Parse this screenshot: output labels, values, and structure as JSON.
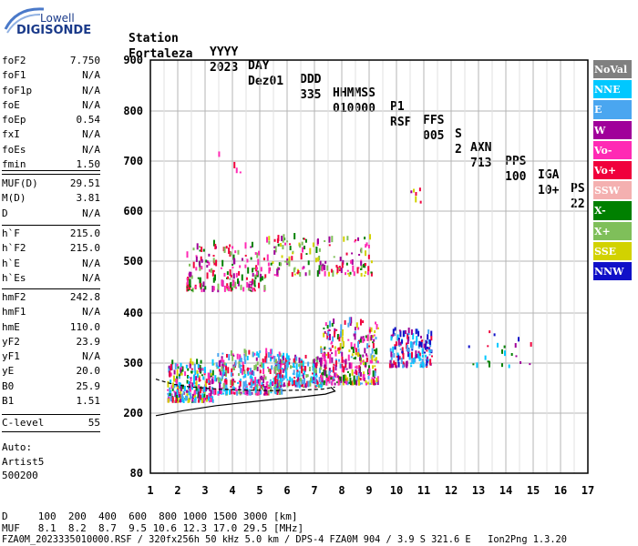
{
  "logo": {
    "brand": "Lowell",
    "product": "DIGISONDE"
  },
  "header": {
    "labels": [
      "Station",
      "YYYY",
      "DAY",
      "DDD",
      "HHMMSS",
      "P1",
      "FFS",
      "S",
      "AXN",
      "PPS",
      "IGA",
      "PS"
    ],
    "values": [
      "Fortaleza",
      "2023",
      "Dez01",
      "335",
      "010000",
      "RSF",
      "005",
      "2",
      "713",
      "100",
      "10+",
      "22"
    ]
  },
  "params": {
    "group1": [
      {
        "name": "foF2",
        "value": "7.750"
      },
      {
        "name": "foF1",
        "value": "N/A"
      },
      {
        "name": "foF1p",
        "value": "N/A"
      },
      {
        "name": "foE",
        "value": "N/A"
      },
      {
        "name": "foEp",
        "value": "0.54"
      },
      {
        "name": "fxI",
        "value": "N/A"
      },
      {
        "name": "foEs",
        "value": "N/A"
      },
      {
        "name": "fmin",
        "value": "1.50"
      }
    ],
    "group2": [
      {
        "name": "MUF(D)",
        "value": "29.51"
      },
      {
        "name": "M(D)",
        "value": "3.81"
      },
      {
        "name": "D",
        "value": "N/A"
      }
    ],
    "group3": [
      {
        "name": "h`F",
        "value": "215.0"
      },
      {
        "name": "h`F2",
        "value": "215.0"
      },
      {
        "name": "h`E",
        "value": "N/A"
      },
      {
        "name": "h`Es",
        "value": "N/A"
      }
    ],
    "group4": [
      {
        "name": "hmF2",
        "value": "242.8"
      },
      {
        "name": "hmF1",
        "value": "N/A"
      },
      {
        "name": "hmE",
        "value": "110.0"
      },
      {
        "name": "yF2",
        "value": "23.9"
      },
      {
        "name": "yF1",
        "value": "N/A"
      },
      {
        "name": "yE",
        "value": "20.0"
      },
      {
        "name": "B0",
        "value": "25.9"
      },
      {
        "name": "B1",
        "value": "1.51"
      }
    ],
    "group5": [
      {
        "name": "C-level",
        "value": "55"
      }
    ]
  },
  "auto": {
    "label": "Auto:",
    "program": "Artist5",
    "version": "500200"
  },
  "footer": {
    "d_row": "D     100  200  400  600  800 1000 1500 3000 [km]",
    "muf_row": "MUF   8.1  8.2  8.7  9.5 10.6 12.3 17.0 29.5 [MHz]",
    "file_row": "FZA0M_2023335010000.RSF / 320fx256h 50 kHz 5.0 km / DPS-4 FZA0M 904 / 3.9 S 321.6 E   Ion2Png 1.3.20"
  },
  "legend": [
    {
      "label": "NoVal",
      "color": "#808080"
    },
    {
      "label": "NNE",
      "color": "#00c8ff"
    },
    {
      "label": "E",
      "color": "#4aa6f0"
    },
    {
      "label": "W",
      "color": "#a0009a"
    },
    {
      "label": "Vo-",
      "color": "#ff2ab4"
    },
    {
      "label": "Vo+",
      "color": "#f0003c"
    },
    {
      "label": "SSW",
      "color": "#f4b0b0"
    },
    {
      "label": "X-",
      "color": "#008000"
    },
    {
      "label": "X+",
      "color": "#7fbf5a"
    },
    {
      "label": "SSE",
      "color": "#d2d200"
    },
    {
      "label": "NNW",
      "color": "#1010c8"
    }
  ],
  "chart_data": {
    "type": "scatter",
    "xlabel": "",
    "ylabel": "",
    "xlim": [
      1,
      17
    ],
    "ylim": [
      80,
      900
    ],
    "x_ticks": [
      1,
      2,
      3,
      4,
      5,
      6,
      7,
      8,
      9,
      10,
      11,
      12,
      13,
      14,
      15,
      16,
      17
    ],
    "y_ticks": [
      80,
      200,
      300,
      400,
      500,
      600,
      700,
      800,
      900
    ],
    "grid": true,
    "legend_position": "right",
    "clusters": [
      {
        "x": [
          1.6,
          3.3
        ],
        "y": [
          220,
          300
        ],
        "n": 260,
        "colors": [
          "#a0009a",
          "#f0003c",
          "#4aa6f0",
          "#ff2ab4",
          "#00c8ff",
          "#008000",
          "#d2d200"
        ]
      },
      {
        "x": [
          3.3,
          5.8
        ],
        "y": [
          235,
          320
        ],
        "n": 320,
        "colors": [
          "#4aa6f0",
          "#00c8ff",
          "#a0009a",
          "#f0003c",
          "#ff2ab4",
          "#7fbf5a"
        ]
      },
      {
        "x": [
          5.5,
          7.3
        ],
        "y": [
          250,
          310
        ],
        "n": 200,
        "colors": [
          "#4aa6f0",
          "#f0003c",
          "#00c8ff",
          "#a0009a",
          "#7fbf5a"
        ]
      },
      {
        "x": [
          7.2,
          9.3
        ],
        "y": [
          255,
          380
        ],
        "n": 300,
        "colors": [
          "#f0003c",
          "#ff2ab4",
          "#4aa6f0",
          "#008000",
          "#d2d200",
          "#a0009a"
        ]
      },
      {
        "x": [
          9.7,
          11.3
        ],
        "y": [
          290,
          365
        ],
        "n": 150,
        "colors": [
          "#1010c8",
          "#4aa6f0",
          "#00c8ff",
          "#f0003c",
          "#a0009a"
        ]
      },
      {
        "x": [
          12.3,
          15.0
        ],
        "y": [
          290,
          360
        ],
        "n": 22,
        "colors": [
          "#1010c8",
          "#00c8ff",
          "#008000",
          "#f0003c",
          "#a0009a"
        ]
      },
      {
        "x": [
          2.3,
          5.2
        ],
        "y": [
          440,
          530
        ],
        "n": 180,
        "colors": [
          "#f0003c",
          "#ff2ab4",
          "#a0009a",
          "#008000",
          "#7fbf5a"
        ]
      },
      {
        "x": [
          5.2,
          9.1
        ],
        "y": [
          470,
          545
        ],
        "n": 150,
        "colors": [
          "#f0003c",
          "#ff2ab4",
          "#a0009a",
          "#008000",
          "#7fbf5a",
          "#d2d200"
        ]
      },
      {
        "x": [
          10.5,
          10.9
        ],
        "y": [
          615,
          640
        ],
        "n": 6,
        "colors": [
          "#1010c8",
          "#d2d200",
          "#a0009a",
          "#f0003c"
        ]
      },
      {
        "x": [
          3.0,
          4.6
        ],
        "y": [
          675,
          735
        ],
        "n": 4,
        "colors": [
          "#f0003c",
          "#ff2ab4"
        ]
      }
    ],
    "profile_solid": [
      [
        1.2,
        195
      ],
      [
        2.2,
        205
      ],
      [
        3.4,
        215
      ],
      [
        4.6,
        222
      ],
      [
        5.6,
        228
      ],
      [
        6.6,
        233
      ],
      [
        7.4,
        238
      ],
      [
        7.75,
        244
      ],
      [
        7.6,
        252
      ]
    ],
    "profile_dashed": [
      [
        1.2,
        268
      ],
      [
        1.8,
        258
      ],
      [
        2.5,
        252
      ],
      [
        3.5,
        248
      ],
      [
        4.5,
        246
      ],
      [
        5.5,
        245
      ],
      [
        6.5,
        246
      ],
      [
        7.3,
        248
      ],
      [
        7.75,
        252
      ]
    ]
  }
}
